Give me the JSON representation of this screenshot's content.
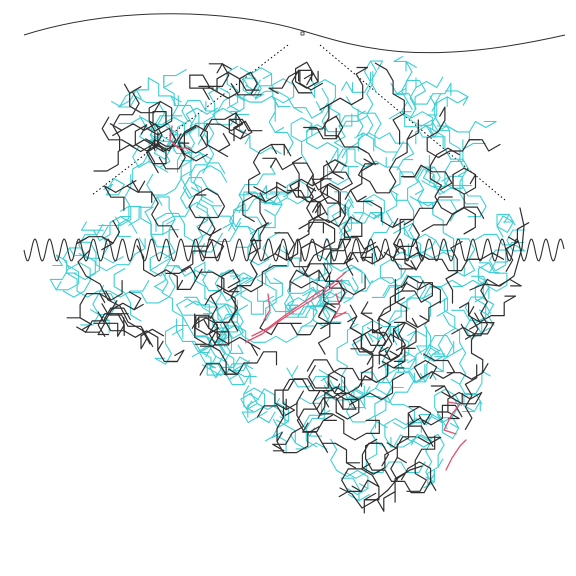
{
  "viewer": {
    "background": "#ffffff",
    "colors": {
      "backbone": "#2f2f2f",
      "sidechain": "#3fcfd4",
      "highlight": "#e0506e",
      "guide": "#000000"
    },
    "layers": [
      {
        "name": "membrane-curve",
        "kind": "curve"
      },
      {
        "name": "helix-wave",
        "kind": "sine-wave"
      },
      {
        "name": "dotted-guides",
        "kind": "dashed-lines"
      },
      {
        "name": "sidechain-bonds",
        "kind": "stick-model"
      },
      {
        "name": "backbone-bonds",
        "kind": "stick-model"
      },
      {
        "name": "highlight-bonds",
        "kind": "stick-model"
      }
    ]
  }
}
